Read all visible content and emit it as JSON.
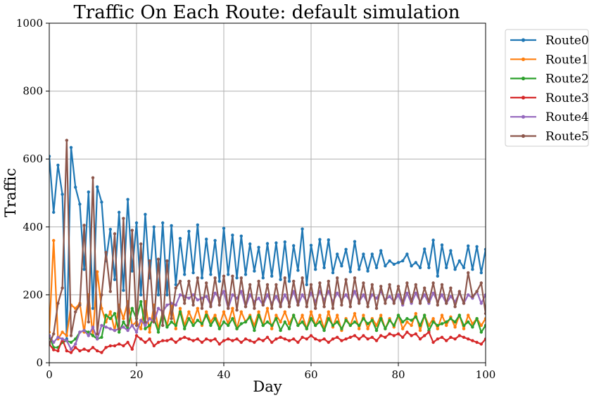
{
  "chart_data": {
    "type": "line",
    "title": "Traffic On Each Route: default simulation",
    "xlabel": "Day",
    "ylabel": "Traffic",
    "xlim": [
      0,
      100
    ],
    "ylim": [
      0,
      1000
    ],
    "xticks": [
      0,
      20,
      40,
      60,
      80,
      100
    ],
    "yticks": [
      0,
      200,
      400,
      600,
      800,
      1000
    ],
    "grid": true,
    "legend_position": "outside-top-right",
    "marker": "circle",
    "x": [
      0,
      1,
      2,
      3,
      4,
      5,
      6,
      7,
      8,
      9,
      10,
      11,
      12,
      13,
      14,
      15,
      16,
      17,
      18,
      19,
      20,
      21,
      22,
      23,
      24,
      25,
      26,
      27,
      28,
      29,
      30,
      31,
      32,
      33,
      34,
      35,
      36,
      37,
      38,
      39,
      40,
      41,
      42,
      43,
      44,
      45,
      46,
      47,
      48,
      49,
      50,
      51,
      52,
      53,
      54,
      55,
      56,
      57,
      58,
      59,
      60,
      61,
      62,
      63,
      64,
      65,
      66,
      67,
      68,
      69,
      70,
      71,
      72,
      73,
      74,
      75,
      76,
      77,
      78,
      79,
      80,
      81,
      82,
      83,
      84,
      85,
      86,
      87,
      88,
      89,
      90,
      91,
      92,
      93,
      94,
      95,
      96,
      97,
      98,
      99,
      100
    ],
    "series": [
      {
        "name": "Route0",
        "color": "#1f77b4",
        "values": [
          608,
          443,
          582,
          496,
          70,
          634,
          517,
          467,
          275,
          503,
          160,
          518,
          473,
          300,
          393,
          245,
          443,
          213,
          481,
          270,
          412,
          200,
          437,
          250,
          400,
          200,
          412,
          200,
          404,
          230,
          366,
          260,
          387,
          265,
          406,
          250,
          364,
          260,
          360,
          240,
          396,
          260,
          376,
          250,
          373,
          260,
          350,
          270,
          340,
          250,
          351,
          255,
          353,
          245,
          356,
          240,
          345,
          272,
          394,
          230,
          346,
          275,
          363,
          280,
          362,
          265,
          320,
          285,
          334,
          268,
          357,
          275,
          320,
          270,
          320,
          280,
          330,
          285,
          300,
          290,
          295,
          300,
          320,
          285,
          295,
          280,
          335,
          280,
          361,
          255,
          347,
          280,
          330,
          275,
          300,
          280,
          344,
          275,
          342,
          265,
          334
        ]
      },
      {
        "name": "Route1",
        "color": "#ff7f0e",
        "values": [
          90,
          360,
          70,
          90,
          80,
          170,
          160,
          175,
          90,
          200,
          80,
          268,
          160,
          120,
          150,
          95,
          170,
          130,
          180,
          110,
          120,
          100,
          180,
          90,
          170,
          100,
          150,
          110,
          170,
          100,
          160,
          110,
          150,
          120,
          160,
          110,
          150,
          120,
          140,
          110,
          150,
          115,
          160,
          100,
          150,
          120,
          140,
          110,
          150,
          110,
          160,
          100,
          140,
          120,
          150,
          115,
          140,
          110,
          140,
          100,
          150,
          110,
          140,
          100,
          150,
          105,
          140,
          95,
          130,
          110,
          145,
          100,
          140,
          100,
          130,
          110,
          140,
          100,
          130,
          105,
          140,
          100,
          120,
          110,
          145,
          95,
          140,
          110,
          130,
          100,
          140,
          110,
          135,
          105,
          140,
          100,
          140,
          115,
          130,
          110,
          130
        ]
      },
      {
        "name": "Route2",
        "color": "#2ca02c",
        "values": [
          80,
          45,
          45,
          60,
          65,
          60,
          70,
          90,
          95,
          90,
          80,
          70,
          75,
          140,
          130,
          145,
          90,
          120,
          100,
          160,
          130,
          180,
          100,
          110,
          130,
          90,
          150,
          105,
          120,
          110,
          150,
          100,
          130,
          110,
          125,
          115,
          140,
          110,
          130,
          100,
          120,
          110,
          130,
          100,
          115,
          120,
          135,
          95,
          140,
          110,
          120,
          110,
          130,
          95,
          120,
          100,
          140,
          110,
          120,
          100,
          130,
          110,
          120,
          95,
          130,
          110,
          120,
          100,
          125,
          110,
          120,
          110,
          130,
          115,
          125,
          95,
          130,
          100,
          125,
          110,
          140,
          120,
          130,
          125,
          135,
          110,
          140,
          95,
          120,
          110,
          115,
          120,
          130,
          120,
          140,
          110,
          120,
          105,
          130,
          90,
          110
        ]
      },
      {
        "name": "Route3",
        "color": "#d62728",
        "values": [
          55,
          38,
          35,
          70,
          35,
          30,
          45,
          35,
          40,
          35,
          45,
          35,
          30,
          45,
          50,
          50,
          55,
          50,
          60,
          40,
          80,
          70,
          60,
          70,
          50,
          60,
          65,
          65,
          70,
          60,
          70,
          75,
          70,
          65,
          70,
          60,
          70,
          65,
          70,
          55,
          65,
          70,
          65,
          70,
          60,
          70,
          65,
          60,
          70,
          65,
          75,
          60,
          70,
          75,
          70,
          65,
          70,
          60,
          75,
          70,
          80,
          70,
          65,
          70,
          60,
          70,
          75,
          65,
          70,
          75,
          80,
          70,
          80,
          70,
          75,
          65,
          80,
          75,
          85,
          80,
          85,
          75,
          90,
          80,
          85,
          70,
          80,
          90,
          60,
          70,
          75,
          65,
          75,
          70,
          80,
          75,
          70,
          65,
          60,
          55,
          70
        ]
      },
      {
        "name": "Route4",
        "color": "#9467bd",
        "values": [
          80,
          60,
          75,
          70,
          65,
          40,
          55,
          90,
          95,
          80,
          105,
          70,
          110,
          105,
          100,
          95,
          100,
          105,
          95,
          110,
          90,
          125,
          110,
          130,
          120,
          160,
          150,
          170,
          175,
          170,
          200,
          195,
          190,
          200,
          185,
          190,
          195,
          170,
          205,
          190,
          210,
          160,
          200,
          190,
          210,
          165,
          200,
          180,
          190,
          170,
          200,
          175,
          195,
          170,
          200,
          175,
          210,
          170,
          200,
          180,
          205,
          180,
          210,
          185,
          210,
          180,
          205,
          185,
          200,
          180,
          210,
          180,
          200,
          175,
          200,
          190,
          210,
          185,
          195,
          180,
          200,
          170,
          205,
          175,
          205,
          180,
          200,
          175,
          205,
          180,
          200,
          175,
          195,
          180,
          205,
          175,
          200,
          190,
          210,
          175,
          200
        ]
      },
      {
        "name": "Route5",
        "color": "#8c564b",
        "values": [
          55,
          85,
          175,
          220,
          655,
          80,
          150,
          170,
          405,
          120,
          545,
          85,
          200,
          325,
          210,
          380,
          100,
          425,
          110,
          390,
          110,
          350,
          120,
          300,
          120,
          305,
          110,
          300,
          130,
          220,
          240,
          175,
          240,
          170,
          250,
          160,
          235,
          165,
          250,
          170,
          255,
          160,
          255,
          155,
          250,
          165,
          230,
          160,
          240,
          170,
          230,
          160,
          230,
          165,
          250,
          165,
          240,
          170,
          250,
          165,
          230,
          160,
          235,
          165,
          240,
          160,
          250,
          170,
          245,
          165,
          250,
          175,
          235,
          165,
          230,
          160,
          225,
          175,
          230,
          175,
          225,
          175,
          235,
          180,
          230,
          175,
          220,
          180,
          235,
          170,
          230,
          175,
          220,
          165,
          210,
          175,
          265,
          195,
          210,
          235,
          145
        ]
      }
    ]
  }
}
